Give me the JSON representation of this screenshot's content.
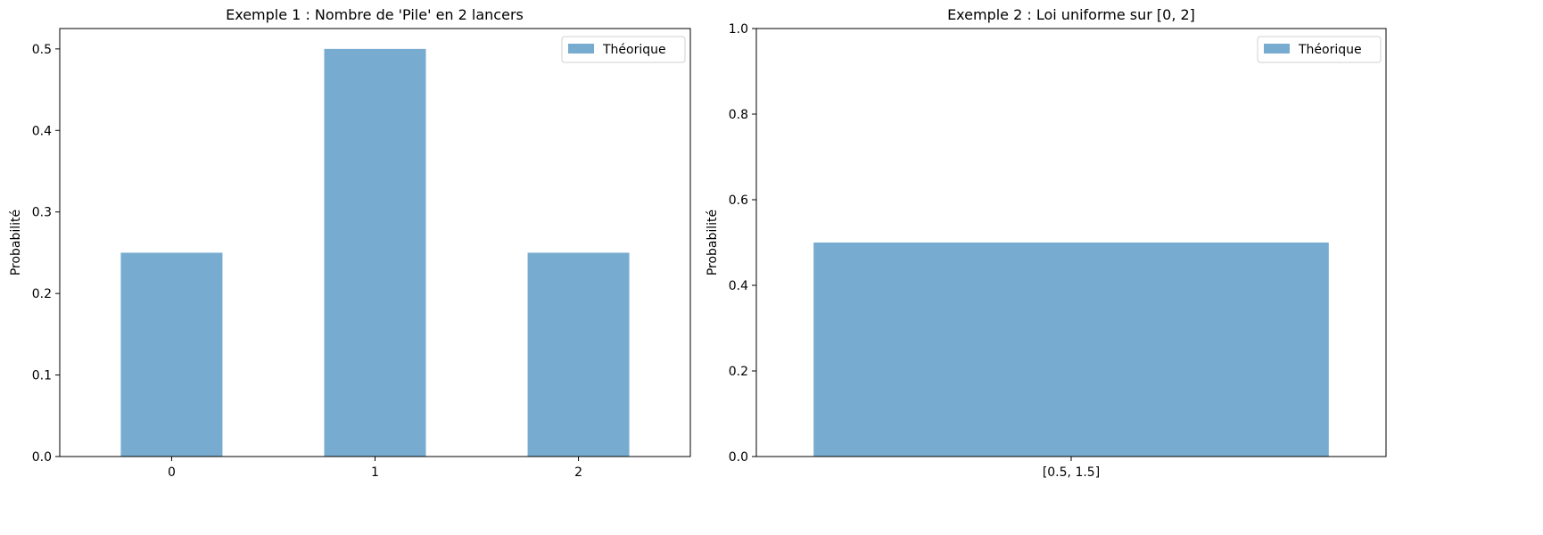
{
  "chart_data": [
    {
      "type": "bar",
      "title": "Exemple 1 : Nombre de 'Pile' en 2 lancers",
      "xlabel": "",
      "ylabel": "Probabilité",
      "categories": [
        "0",
        "1",
        "2"
      ],
      "series": [
        {
          "name": "Théorique",
          "values": [
            0.25,
            0.5,
            0.25
          ],
          "color": "#77acd0"
        }
      ],
      "ylim": [
        0,
        0.525
      ],
      "yticks": [
        "0.0",
        "0.1",
        "0.2",
        "0.3",
        "0.4",
        "0.5"
      ],
      "ytick_values": [
        0,
        0.1,
        0.2,
        0.3,
        0.4,
        0.5
      ],
      "grid": false,
      "legend_position": "top-right"
    },
    {
      "type": "bar",
      "title": "Exemple 2 : Loi uniforme sur [0, 2]",
      "xlabel": "",
      "ylabel": "Probabilité",
      "categories": [
        "[0.5, 1.5]"
      ],
      "series": [
        {
          "name": "Théorique",
          "values": [
            0.5
          ],
          "color": "#77acd0"
        }
      ],
      "ylim": [
        0,
        1.0
      ],
      "yticks": [
        "0.0",
        "0.2",
        "0.4",
        "0.6",
        "0.8",
        "1.0"
      ],
      "ytick_values": [
        0,
        0.2,
        0.4,
        0.6,
        0.8,
        1.0
      ],
      "grid": false,
      "legend_position": "top-right"
    }
  ]
}
